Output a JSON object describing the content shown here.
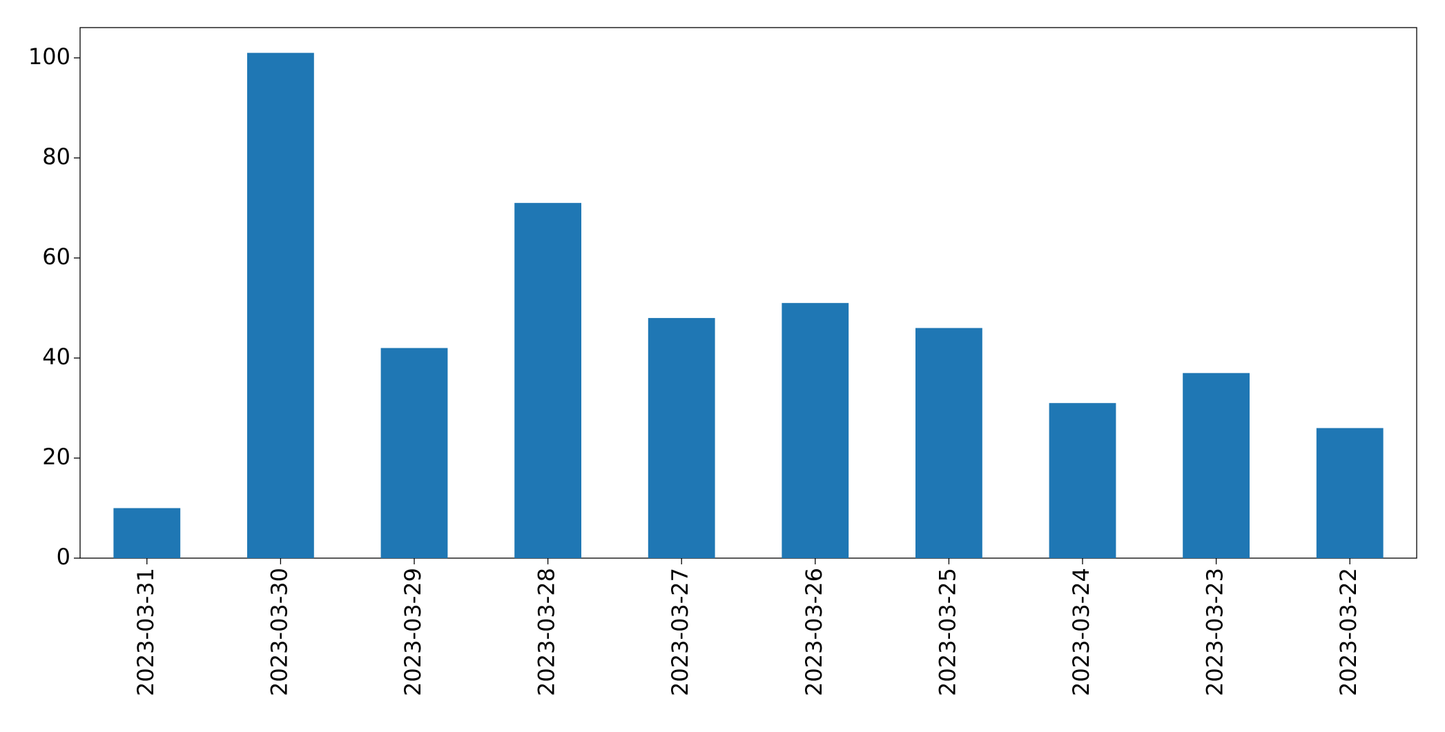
{
  "chart_data": {
    "type": "bar",
    "categories": [
      "2023-03-31",
      "2023-03-30",
      "2023-03-29",
      "2023-03-28",
      "2023-03-27",
      "2023-03-26",
      "2023-03-25",
      "2023-03-24",
      "2023-03-23",
      "2023-03-22"
    ],
    "values": [
      10,
      101,
      42,
      71,
      48,
      51,
      46,
      31,
      37,
      26
    ],
    "color": "#1f77b4",
    "ylim": [
      0,
      106.05
    ],
    "yticks": [
      0,
      20,
      40,
      60,
      80,
      100
    ],
    "grid": false
  }
}
